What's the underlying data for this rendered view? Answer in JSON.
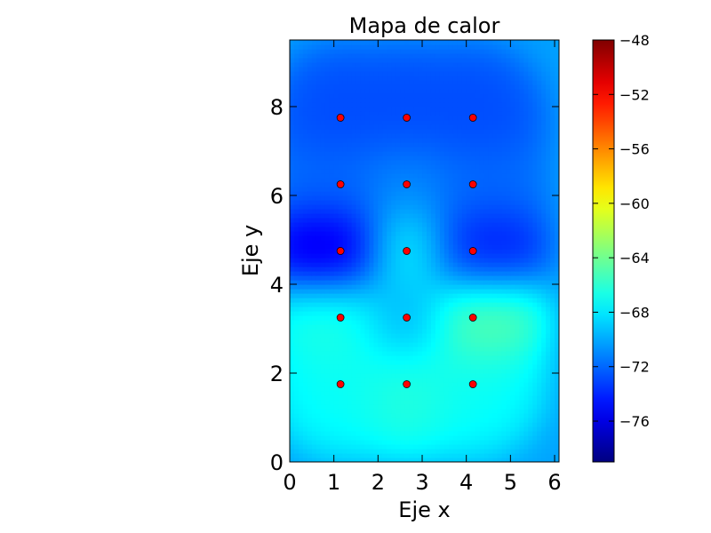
{
  "chart_data": {
    "type": "heatmap",
    "title": "Mapa de calor",
    "xlabel": "Eje x",
    "ylabel": "Eje y",
    "xlim": [
      0,
      6.1
    ],
    "ylim": [
      0,
      9.5
    ],
    "xticks": [
      0,
      1,
      2,
      3,
      4,
      5,
      6
    ],
    "yticks": [
      0,
      2,
      4,
      6,
      8
    ],
    "colormap": "jet",
    "color_range": [
      -79,
      -48
    ],
    "colorbar_ticks": [
      -48,
      -52,
      -56,
      -60,
      -64,
      -68,
      -72,
      -76
    ],
    "colorbar_tick_labels": [
      "−48",
      "−52",
      "−56",
      "−60",
      "−64",
      "−68",
      "−72",
      "−76"
    ],
    "grid": false,
    "points_x": [
      1.15,
      2.65,
      4.15
    ],
    "points_y": [
      1.75,
      3.25,
      4.75,
      6.25,
      7.75
    ],
    "values": [
      [
        -67,
        -66,
        -67
      ],
      [
        -66,
        -70,
        -64
      ],
      [
        -77,
        -67,
        -75
      ],
      [
        -72,
        -71,
        -72
      ],
      [
        -73,
        -73,
        -73
      ]
    ],
    "marker_color": "#ff0000"
  }
}
